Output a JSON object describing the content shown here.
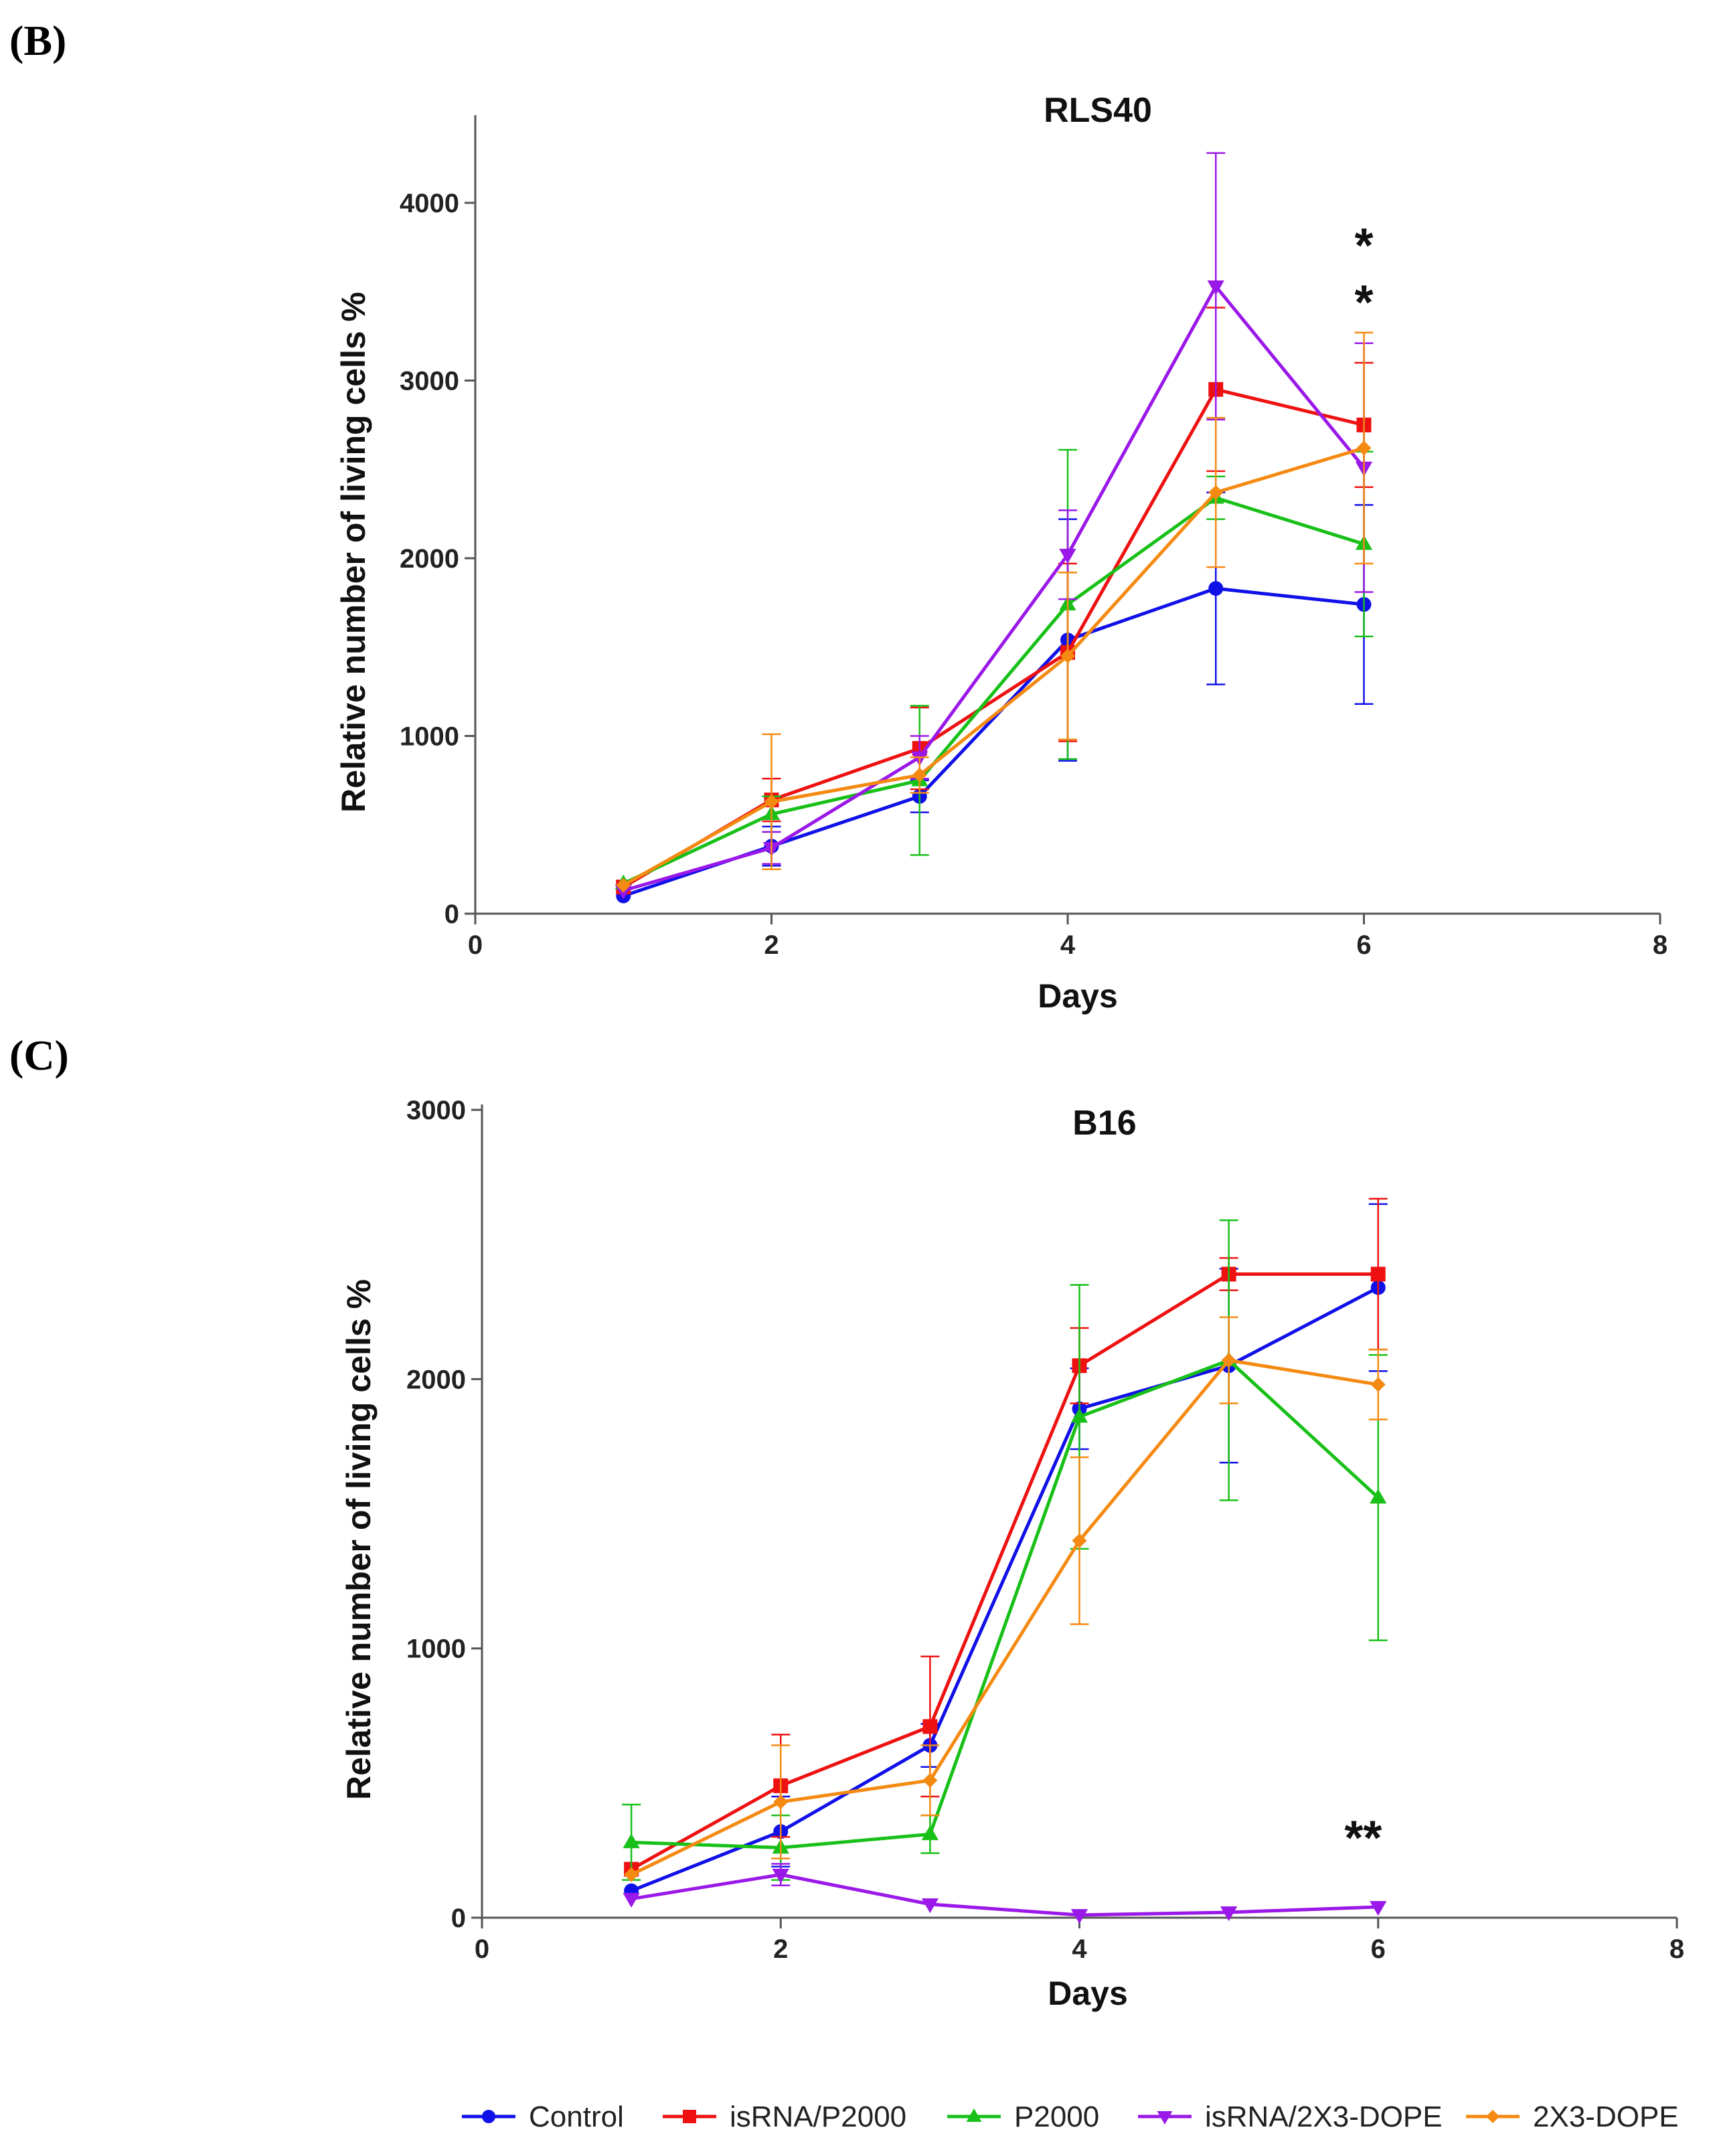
{
  "panels": [
    {
      "label": "(B)"
    },
    {
      "label": "(C)"
    }
  ],
  "colors": {
    "Control": "#1010e8",
    "isRNA/P2000": "#ee1111",
    "P2000": "#18c018",
    "isRNA/2X3-DOPE": "#9a18e8",
    "2X3-DOPE": "#f58a12"
  },
  "legend": [
    "Control",
    "isRNA/P2000",
    "P2000",
    "isRNA/2X3-DOPE",
    "2X3-DOPE"
  ],
  "chart_data": [
    {
      "type": "line",
      "title": "RLS40",
      "xlabel": "Days",
      "ylabel": "Relative number of living cells %",
      "xlim": [
        0,
        8
      ],
      "ylim": [
        0,
        4500
      ],
      "xticks": [
        0,
        2,
        4,
        6,
        8
      ],
      "yticks": [
        0,
        1000,
        2000,
        3000,
        4000
      ],
      "x": [
        1,
        2,
        3,
        4,
        5,
        6
      ],
      "annotations": [
        {
          "text": "*",
          "x": 6,
          "y": 3780
        },
        {
          "text": "*",
          "x": 6,
          "y": 3460
        }
      ],
      "series": [
        {
          "name": "Control",
          "marker": "circle",
          "values": [
            100,
            380,
            660,
            1540,
            1830,
            1740
          ],
          "errors": [
            0,
            110,
            90,
            680,
            540,
            560
          ]
        },
        {
          "name": "isRNA/P2000",
          "marker": "square",
          "values": [
            150,
            640,
            930,
            1470,
            2950,
            2750
          ],
          "errors": [
            0,
            120,
            230,
            500,
            460,
            350
          ]
        },
        {
          "name": "P2000",
          "marker": "triangle-up",
          "values": [
            170,
            560,
            750,
            1740,
            2340,
            2080
          ],
          "errors": [
            0,
            100,
            420,
            870,
            120,
            520
          ]
        },
        {
          "name": "isRNA/2X3-DOPE",
          "marker": "triangle-down",
          "values": [
            130,
            370,
            880,
            2020,
            3530,
            2510
          ],
          "errors": [
            0,
            90,
            120,
            250,
            750,
            700
          ]
        },
        {
          "name": "2X3-DOPE",
          "marker": "diamond",
          "values": [
            160,
            630,
            780,
            1450,
            2370,
            2620
          ],
          "errors": [
            0,
            380,
            100,
            470,
            420,
            650
          ]
        }
      ]
    },
    {
      "type": "line",
      "title": "B16",
      "xlabel": "Days",
      "ylabel": "Relative number of living cells %",
      "xlim": [
        0,
        8
      ],
      "ylim": [
        0,
        3000
      ],
      "xticks": [
        0,
        2,
        4,
        6,
        8
      ],
      "yticks": [
        0,
        1000,
        2000,
        3000
      ],
      "x": [
        1,
        2,
        3,
        4,
        5,
        6
      ],
      "annotations": [
        {
          "text": "**",
          "x": 5.9,
          "y": 310
        }
      ],
      "series": [
        {
          "name": "Control",
          "marker": "circle",
          "values": [
            100,
            320,
            640,
            1890,
            2050,
            2340
          ],
          "errors": [
            0,
            130,
            80,
            150,
            360,
            310
          ]
        },
        {
          "name": "isRNA/P2000",
          "marker": "square",
          "values": [
            180,
            490,
            710,
            2050,
            2390,
            2390
          ],
          "errors": [
            0,
            190,
            260,
            140,
            60,
            280
          ]
        },
        {
          "name": "P2000",
          "marker": "triangle-up",
          "values": [
            280,
            260,
            310,
            1860,
            2070,
            1560
          ],
          "errors": [
            140,
            120,
            70,
            490,
            520,
            530
          ]
        },
        {
          "name": "isRNA/2X3-DOPE",
          "marker": "triangle-down",
          "values": [
            70,
            160,
            50,
            10,
            20,
            40
          ],
          "errors": [
            0,
            40,
            0,
            0,
            0,
            0
          ]
        },
        {
          "name": "2X3-DOPE",
          "marker": "diamond",
          "values": [
            160,
            430,
            510,
            1400,
            2070,
            1980
          ],
          "errors": [
            0,
            210,
            130,
            310,
            160,
            130
          ]
        }
      ]
    }
  ]
}
